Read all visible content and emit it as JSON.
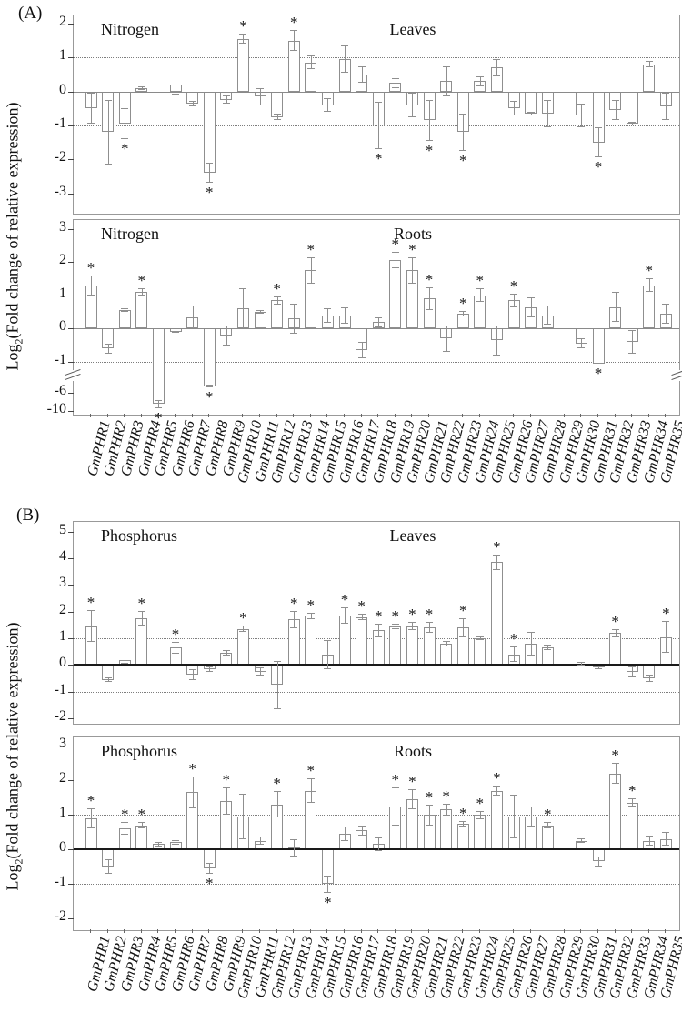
{
  "figure": {
    "section_a_label": "(A)",
    "section_b_label": "(B)",
    "y_axis_title": {
      "prefix": "Log",
      "subscript": "2",
      "suffix": "(Fold change of relative expression)"
    }
  },
  "categories": [
    "GmPHR1",
    "GmPHR2",
    "GmPHR3",
    "GmPHR4",
    "GmPHR5",
    "GmPHR6",
    "GmPHR7",
    "GmPHR8",
    "GmPHR9",
    "GmPHR10",
    "GmPHR11",
    "GmPHR12",
    "GmPHR13",
    "GmPHR14",
    "GmPHR15",
    "GmPHR16",
    "GmPHR17",
    "GmPHR18",
    "GmPHR19",
    "GmPHR20",
    "GmPHR21",
    "GmPHR22",
    "GmPHR23",
    "GmPHR24",
    "GmPHR25",
    "GmPHR26",
    "GmPHR27",
    "GmPHR28",
    "GmPHR29",
    "GmPHR30",
    "GmPHR31",
    "GmPHR32",
    "GmPHR33",
    "GmPHR34",
    "GmPHR35"
  ],
  "chart_data": [
    {
      "id": "nitrogen-leaves",
      "type": "bar",
      "treatment": "Nitrogen",
      "tissue": "Leaves",
      "ylabel": "Log2(Fold change of relative expression)",
      "ylim": [
        2.24,
        -3.6
      ],
      "y_anchors": [
        [
          2.24,
          0
        ],
        [
          -3.6,
          1
        ]
      ],
      "yticks": [
        2,
        1,
        0,
        -1,
        -2,
        -3
      ],
      "ref_lines": [
        1,
        -1
      ],
      "zero_line": "thin",
      "values": [
        -0.5,
        -1.2,
        -0.95,
        0.1,
        0,
        0.2,
        -0.35,
        -2.4,
        -0.25,
        1.55,
        -0.15,
        -0.75,
        1.5,
        0.85,
        -0.4,
        0.95,
        0.5,
        -1.0,
        0.25,
        -0.4,
        -0.85,
        0.3,
        -1.2,
        0.3,
        0.7,
        -0.5,
        -0.65,
        -0.65,
        0,
        -0.7,
        -1.5,
        -0.55,
        -0.95,
        0.8,
        -0.45
      ],
      "errors": [
        0.45,
        0.95,
        0.45,
        0.05,
        0,
        0.3,
        0.08,
        0.3,
        0.12,
        0.15,
        0.25,
        0.1,
        0.3,
        0.2,
        0.2,
        0.4,
        0.25,
        0.7,
        0.15,
        0.35,
        0.6,
        0.45,
        0.55,
        0.15,
        0.25,
        0.22,
        0.05,
        0.4,
        0,
        0.35,
        0.45,
        0.3,
        0.05,
        0.1,
        0.4
      ],
      "significant_categories": [
        3,
        8,
        10,
        13,
        18,
        21,
        23,
        31
      ]
    },
    {
      "id": "nitrogen-roots",
      "type": "bar",
      "treatment": "Nitrogen",
      "tissue": "Roots",
      "ylabel": "Log2(Fold change of relative expression)",
      "ylim": [
        3.26,
        -10.9
      ],
      "y_anchors": [
        [
          3.26,
          0
        ],
        [
          -1.35,
          0.789
        ],
        [
          -5.0,
          0.864
        ],
        [
          -10.9,
          1.0
        ]
      ],
      "axis_break_frac": 0.8,
      "yticks": [
        3,
        2,
        1,
        0,
        -1,
        -6,
        -10
      ],
      "ref_lines": [
        1,
        -1
      ],
      "zero_line": "thin",
      "values": [
        1.3,
        -0.6,
        0.55,
        1.1,
        -8.5,
        -0.1,
        0.35,
        -4.5,
        -0.2,
        0.6,
        0.5,
        0.85,
        0.3,
        1.75,
        0.4,
        0.4,
        -0.65,
        0.2,
        2.05,
        1.75,
        0.9,
        -0.3,
        0.45,
        1.0,
        -0.35,
        0.85,
        0.65,
        0.4,
        0,
        -0.45,
        -1.05,
        0.65,
        -0.4,
        1.3,
        0.45
      ],
      "errors": [
        0.3,
        0.15,
        0.05,
        0.1,
        0.9,
        0.03,
        0.35,
        0.4,
        0.3,
        0.6,
        0.05,
        0.12,
        0.45,
        0.4,
        0.22,
        0.25,
        0.25,
        0.15,
        0.25,
        0.4,
        0.35,
        0.4,
        0.08,
        0.2,
        0.45,
        0.2,
        0.3,
        0.28,
        0,
        0.15,
        0,
        0.45,
        0.35,
        0.2,
        0.3
      ],
      "significant_categories": [
        1,
        4,
        5,
        8,
        12,
        14,
        19,
        20,
        21,
        23,
        24,
        26,
        31,
        34
      ]
    },
    {
      "id": "phosphorus-leaves",
      "type": "bar",
      "treatment": "Phosphorus",
      "tissue": "Leaves",
      "ylabel": "Log2(Fold change of relative expression)",
      "ylim": [
        5.36,
        -2.2
      ],
      "y_anchors": [
        [
          5.36,
          0
        ],
        [
          -2.2,
          1
        ]
      ],
      "yticks": [
        5,
        4,
        3,
        2,
        1,
        0,
        -1,
        -2
      ],
      "ref_lines": [
        1,
        -1
      ],
      "zero_line": "thick",
      "values": [
        1.45,
        -0.55,
        0.2,
        1.75,
        0,
        0.65,
        -0.35,
        -0.15,
        0.45,
        1.35,
        -0.25,
        -0.75,
        1.7,
        1.85,
        0.4,
        1.85,
        1.8,
        1.3,
        1.45,
        1.45,
        1.4,
        0.8,
        1.4,
        1.0,
        3.85,
        0.4,
        0.8,
        0.65,
        0,
        0.05,
        -0.1,
        1.2,
        -0.25,
        -0.5,
        1.05
      ],
      "errors": [
        0.6,
        0.1,
        0.15,
        0.28,
        0,
        0.22,
        0.2,
        0.1,
        0.1,
        0.12,
        0.15,
        0.9,
        0.32,
        0.12,
        0.55,
        0.32,
        0.12,
        0.25,
        0.1,
        0.15,
        0.2,
        0.1,
        0.35,
        0.08,
        0.3,
        0.3,
        0.45,
        0.1,
        0,
        0.08,
        0.06,
        0.15,
        0.2,
        0.15,
        0.6
      ],
      "significant_categories": [
        1,
        4,
        6,
        10,
        13,
        14,
        16,
        17,
        18,
        19,
        20,
        21,
        23,
        25,
        26,
        32,
        35
      ]
    },
    {
      "id": "phosphorus-roots",
      "type": "bar",
      "treatment": "Phosphorus",
      "tissue": "Roots",
      "ylabel": "Log2(Fold change of relative expression)",
      "ylim": [
        3.24,
        -2.34
      ],
      "y_anchors": [
        [
          3.24,
          0
        ],
        [
          -2.34,
          1
        ]
      ],
      "yticks": [
        3,
        2,
        1,
        0,
        -1,
        -2
      ],
      "ref_lines": [
        1,
        -1
      ],
      "zero_line": "thick",
      "values": [
        0.9,
        -0.5,
        0.6,
        0.7,
        0.15,
        0.2,
        1.65,
        -0.55,
        1.4,
        0.95,
        0.25,
        1.3,
        0.05,
        1.7,
        -1.0,
        0.45,
        0.55,
        0.15,
        1.25,
        1.45,
        1.0,
        1.15,
        0.75,
        1.0,
        1.7,
        0.95,
        0.95,
        0.7,
        0,
        0.25,
        -0.35,
        2.2,
        1.35,
        0.25,
        0.3
      ],
      "errors": [
        0.3,
        0.2,
        0.18,
        0.08,
        0.06,
        0.06,
        0.45,
        0.15,
        0.4,
        0.65,
        0.12,
        0.38,
        0.25,
        0.35,
        0.25,
        0.22,
        0.15,
        0.2,
        0.55,
        0.3,
        0.3,
        0.18,
        0.08,
        0.12,
        0.15,
        0.62,
        0.3,
        0.1,
        0,
        0.06,
        0.15,
        0.3,
        0.12,
        0.15,
        0.2
      ],
      "significant_categories": [
        1,
        3,
        4,
        7,
        8,
        9,
        12,
        14,
        15,
        19,
        20,
        21,
        22,
        23,
        24,
        25,
        28,
        32,
        33
      ]
    }
  ]
}
